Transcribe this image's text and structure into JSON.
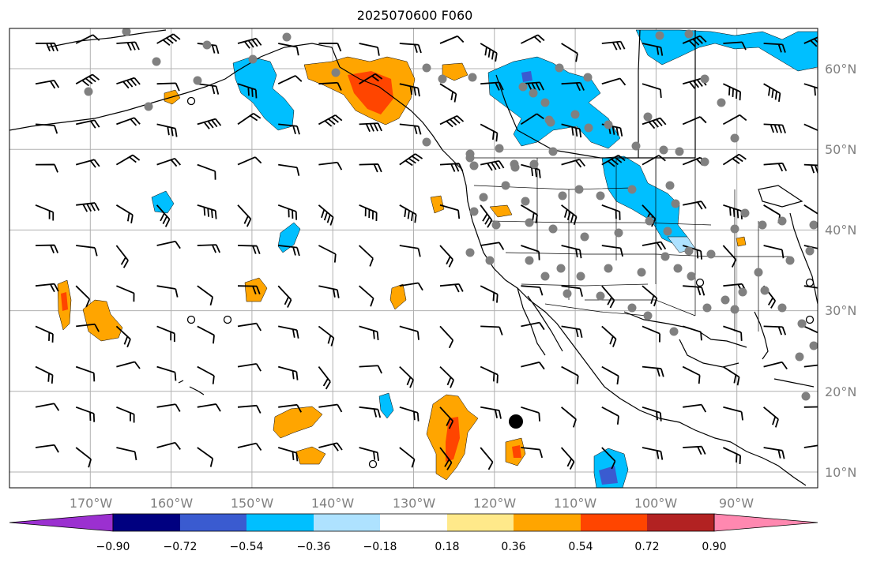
{
  "title": "2025070600 F060",
  "map": {
    "lon_range": [
      -180,
      -80
    ],
    "lat_range": [
      8,
      65
    ],
    "lon_labels": [
      "170°W",
      "160°W",
      "150°W",
      "140°W",
      "130°W",
      "120°W",
      "110°W",
      "100°W",
      "90°W"
    ],
    "lat_labels": [
      "60°N",
      "50°N",
      "40°N",
      "30°N",
      "20°N",
      "10°N"
    ],
    "grid": true,
    "land_color": "#ffffff",
    "coastline_color": "#000000",
    "gridline_color": "#b0b0b0"
  },
  "colorbar": {
    "orientation": "horizontal",
    "extend": "both",
    "tick_labels": [
      "−0.90",
      "−0.72",
      "−0.54",
      "−0.36",
      "−0.18",
      "0.18",
      "0.36",
      "0.54",
      "0.72",
      "0.90"
    ],
    "colors": [
      "#9b30d0",
      "#000080",
      "#3a5bd0",
      "#00bfff",
      "#aee2ff",
      "#ffffff",
      "#ffe98a",
      "#ffa500",
      "#ff4500",
      "#b22222",
      "#ff88b0"
    ]
  },
  "fill_colors": {
    "neg_light": "#aee2ff",
    "neg_mid": "#00bfff",
    "neg_strong": "#3a5bd0",
    "neg_extreme": "#000080",
    "pos_light": "#ffe98a",
    "pos_mid": "#ffa500",
    "pos_strong": "#ff4500"
  },
  "markers": {
    "station_color": "#808080",
    "storm_color": "#000000"
  }
}
